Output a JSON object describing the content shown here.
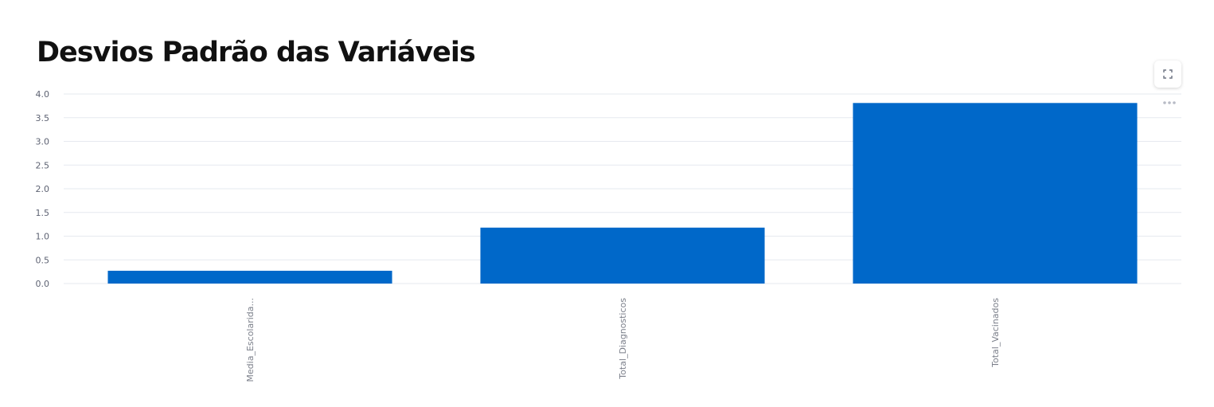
{
  "page": {
    "title": "Desvios Padrão das Variáveis"
  },
  "toolbar": {
    "fullscreen_icon": "expand-icon",
    "more_icon": "ellipsis-icon"
  },
  "chart_data": {
    "type": "bar",
    "categories": [
      "Media_Escolarida...",
      "Total_Diagnosticos",
      "Total_Vacinados"
    ],
    "values": [
      0.27,
      1.18,
      3.81
    ],
    "ylim": [
      0,
      4.0
    ],
    "yticks": [
      "0.0",
      "0.5",
      "1.0",
      "1.5",
      "2.0",
      "2.5",
      "3.0",
      "3.5",
      "4.0"
    ],
    "xlabel": "",
    "ylabel": "",
    "grid": true,
    "bar_color": "#0068c9",
    "grid_color": "#e6e9ef"
  }
}
